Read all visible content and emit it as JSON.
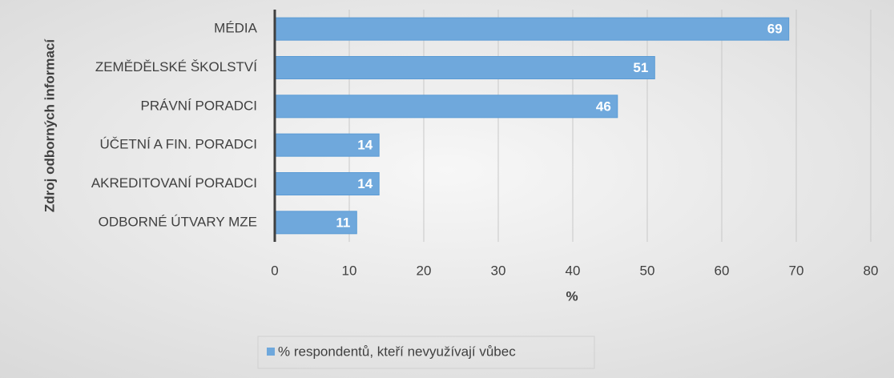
{
  "chart_data": {
    "type": "bar",
    "orientation": "horizontal",
    "categories": [
      "MÉDIA",
      "ZEMĚDĚLSKÉ ŠKOLSTVÍ",
      "PRÁVNÍ PORADCI",
      "ÚČETNÍ A FIN. PORADCI",
      "AKREDITOVANÍ PORADCI",
      "ODBORNÉ ÚTVARY MZE"
    ],
    "series": [
      {
        "name": "% respondentů, kteří nevyužívají vůbec",
        "color": "#6fa8dc",
        "values": [
          69,
          51,
          46,
          14,
          14,
          11
        ]
      }
    ],
    "xlabel": "%",
    "ylabel": "Zdroj odborných informací",
    "xlim": [
      0,
      80
    ],
    "xticks": [
      0,
      10,
      20,
      30,
      40,
      50,
      60,
      70,
      80
    ],
    "grid": true,
    "legend": "bottom"
  }
}
